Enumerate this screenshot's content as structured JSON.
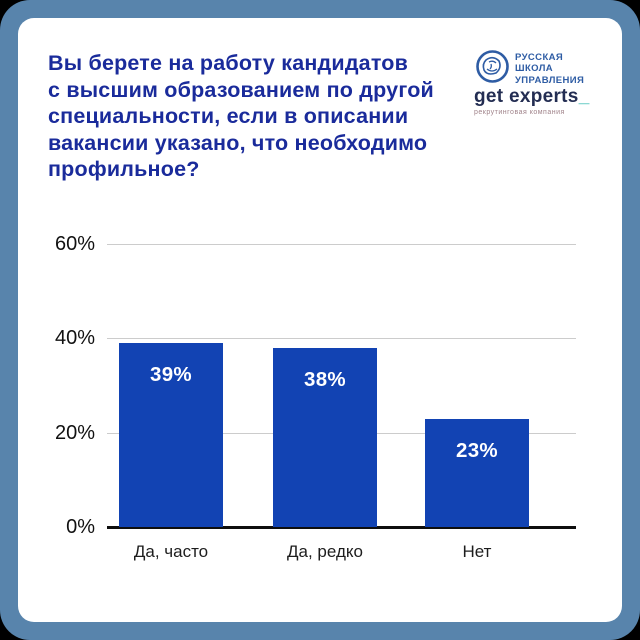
{
  "card": {
    "title": "Вы берете на работу кандидатов\nс высшим образованием по другой\nспециальности, если в описании\nвакансии указано, что необходимо\nпрофильное?"
  },
  "logos": {
    "rsu": {
      "line1": "РУССКАЯ",
      "line2": "ШКОЛА",
      "line3": "УПРАВЛЕНИЯ"
    },
    "getexperts": {
      "wordmark": "get experts",
      "underscore": "_",
      "tagline": "рекрутинговая компания"
    }
  },
  "chart_data": {
    "type": "bar",
    "title": "Вы берете на работу кандидатов с высшим образованием по другой специальности, если в описании вакансии указано, что необходимо профильное?",
    "categories": [
      "Да, часто",
      "Да, редко",
      "Нет"
    ],
    "values": [
      39,
      38,
      23
    ],
    "value_labels": [
      "39%",
      "38%",
      "23%"
    ],
    "ytick_labels": [
      "60%",
      "40%",
      "20%",
      "0%"
    ],
    "ytick_values": [
      60,
      40,
      20,
      0
    ],
    "ylim": [
      0,
      60
    ],
    "xlabel": "",
    "ylabel": "",
    "grid": true,
    "legend": false,
    "bar_color": "#1243b3"
  },
  "colors": {
    "frame_border": "#5884ac",
    "card_background": "#ffffff",
    "title_text": "#1a2b9b",
    "bar_fill": "#1243b3",
    "gridline": "#cccccc",
    "axis_line": "#0e0e0e"
  }
}
